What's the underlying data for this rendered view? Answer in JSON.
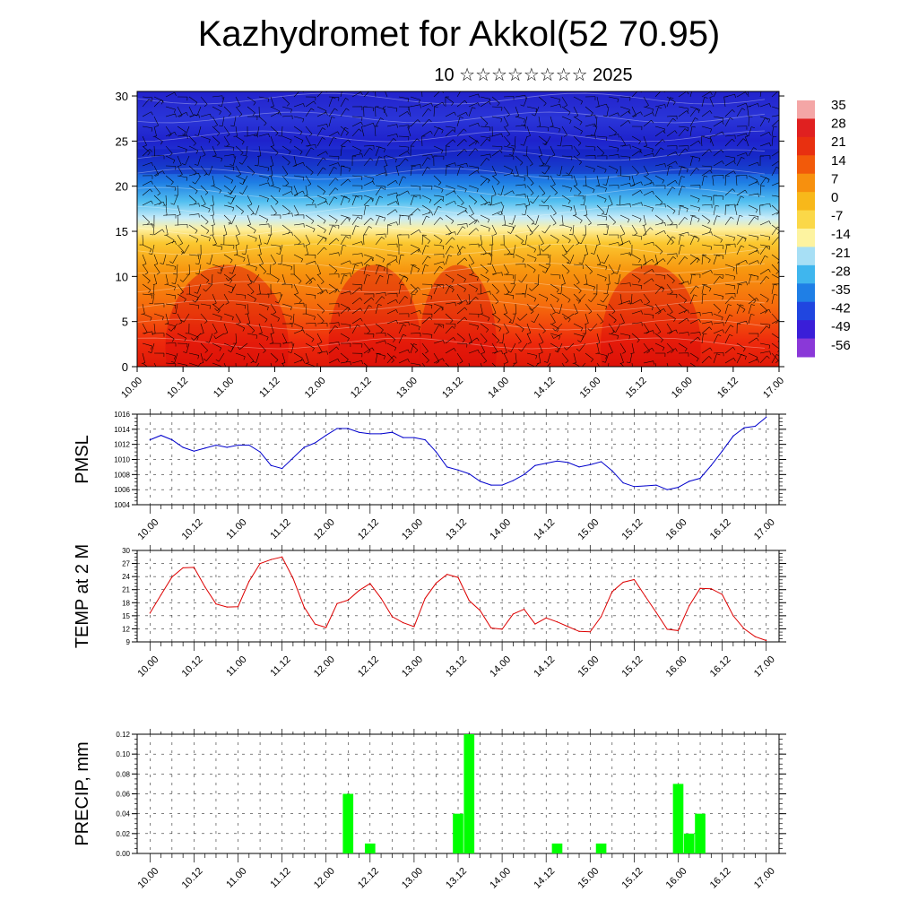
{
  "header": {
    "title": "Kazhydromet for Akkol(52 70.95)",
    "subtitle": "10 ☆☆☆☆☆☆☆☆ 2025"
  },
  "x_ticks": [
    "10.00",
    "10.12",
    "11.00",
    "11.12",
    "12.00",
    "12.12",
    "13.00",
    "13.12",
    "14.00",
    "14.12",
    "15.00",
    "15.12",
    "16.00",
    "16.12",
    "17.00"
  ],
  "chart_data": [
    {
      "type": "heatmap",
      "title": "",
      "xlabel": "",
      "ylabel": "",
      "x_ticks": [
        "10.00",
        "10.12",
        "11.00",
        "11.12",
        "12.00",
        "12.12",
        "13.00",
        "13.12",
        "14.00",
        "14.12",
        "15.00",
        "15.12",
        "16.00",
        "16.12",
        "17.00"
      ],
      "y_ticks": [
        0,
        5,
        10,
        15,
        20,
        25,
        30
      ],
      "ylim": [
        0,
        30.5
      ],
      "colorbar": {
        "labels": [
          "35",
          "28",
          "21",
          "14",
          "7",
          "0",
          "-7",
          "-14",
          "-21",
          "-28",
          "-35",
          "-42",
          "-49",
          "-56"
        ],
        "colors": [
          "#f4a6a6",
          "#e02020",
          "#e83010",
          "#f25a0a",
          "#f7900e",
          "#f8b81a",
          "#fbd848",
          "#fdf3a0",
          "#a7dff5",
          "#3fb6ee",
          "#1f7fe6",
          "#2046e0",
          "#3a1ed8",
          "#8a38d8"
        ]
      },
      "description_levels_celsius": {
        "surface": 30,
        "level_15": -5,
        "level_25": -50
      }
    },
    {
      "type": "line",
      "ylabel": "PMSL",
      "ylim": [
        1004,
        1016
      ],
      "yticks": [
        1004,
        1006,
        1008,
        1010,
        1012,
        1014,
        1016
      ],
      "color": "#0000cc",
      "x": [
        0,
        3,
        6,
        9,
        12,
        15,
        18,
        21,
        24,
        27,
        30,
        33,
        36,
        39,
        42,
        45,
        48,
        51,
        54,
        57,
        60,
        63,
        66,
        69,
        72,
        75,
        78,
        81,
        84,
        87,
        90,
        93,
        96,
        99,
        102,
        105,
        108,
        111,
        114,
        117,
        120,
        123,
        126,
        129,
        132,
        135,
        138,
        141,
        144,
        147,
        150,
        153,
        156,
        159,
        162,
        165,
        168
      ],
      "values": [
        1012.6,
        1013.2,
        1012.6,
        1011.6,
        1011.1,
        1011.5,
        1011.9,
        1011.6,
        1011.9,
        1011.9,
        1011.0,
        1009.2,
        1008.8,
        1010.2,
        1011.6,
        1012.2,
        1013.2,
        1014.1,
        1014.1,
        1013.6,
        1013.4,
        1013.4,
        1013.6,
        1012.9,
        1012.9,
        1012.6,
        1011.0,
        1009.0,
        1008.6,
        1008.1,
        1007.1,
        1006.6,
        1006.6,
        1007.2,
        1008.0,
        1009.2,
        1009.5,
        1009.8,
        1009.6,
        1009.0,
        1009.3,
        1009.7,
        1008.5,
        1006.9,
        1006.4,
        1006.5,
        1006.6,
        1006.0,
        1006.3,
        1007.1,
        1007.5,
        1009.2,
        1011.1,
        1013.1,
        1014.2,
        1014.4,
        1015.6
      ]
    },
    {
      "type": "line",
      "ylabel": "TEMP at 2 M",
      "ylim": [
        9,
        30
      ],
      "yticks": [
        9,
        12,
        15,
        18,
        21,
        24,
        27,
        30
      ],
      "color": "#dd0000",
      "x": [
        0,
        3,
        6,
        9,
        12,
        15,
        18,
        21,
        24,
        27,
        30,
        33,
        36,
        39,
        42,
        45,
        48,
        51,
        54,
        57,
        60,
        63,
        66,
        69,
        72,
        75,
        78,
        81,
        84,
        87,
        90,
        93,
        96,
        99,
        102,
        105,
        108,
        111,
        114,
        117,
        120,
        123,
        126,
        129,
        132,
        135,
        138,
        141,
        144,
        147,
        150,
        153,
        156,
        159,
        162,
        165,
        168
      ],
      "values": [
        15.6,
        19.8,
        23.9,
        26.0,
        26.1,
        21.6,
        17.7,
        17.0,
        17.1,
        22.9,
        27.0,
        27.9,
        28.5,
        23.6,
        17.0,
        13.1,
        12.3,
        17.8,
        18.6,
        20.8,
        22.4,
        19.0,
        14.8,
        13.4,
        12.5,
        19.0,
        22.5,
        24.5,
        23.8,
        18.5,
        16.2,
        12.2,
        11.9,
        15.4,
        16.5,
        13.1,
        14.5,
        13.6,
        12.5,
        11.4,
        11.3,
        14.8,
        20.5,
        22.7,
        23.3,
        19.5,
        15.8,
        11.9,
        11.6,
        17.3,
        21.3,
        21.2,
        19.9,
        15.0,
        12.0,
        10.2,
        9.3
      ]
    },
    {
      "type": "bar",
      "ylabel": "PRECIP, mm",
      "ylim": [
        0,
        0.12
      ],
      "yticks": [
        "0.00",
        "0.02",
        "0.04",
        "0.06",
        "0.08",
        "0.10",
        "0.12"
      ],
      "color": "#00ff00",
      "bars": [
        {
          "x": 54,
          "value": 0.06
        },
        {
          "x": 60,
          "value": 0.01
        },
        {
          "x": 84,
          "value": 0.04
        },
        {
          "x": 87,
          "value": 0.12
        },
        {
          "x": 111,
          "value": 0.01
        },
        {
          "x": 123,
          "value": 0.01
        },
        {
          "x": 144,
          "value": 0.07
        },
        {
          "x": 147,
          "value": 0.02
        },
        {
          "x": 150,
          "value": 0.04
        }
      ]
    }
  ]
}
